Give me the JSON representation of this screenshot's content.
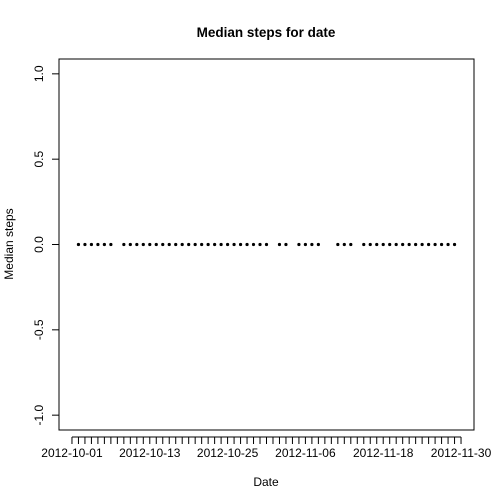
{
  "chart_data": {
    "type": "scatter",
    "title": "Median steps for date",
    "xlabel": "Date",
    "ylabel": "Median steps",
    "x_range": [
      "2012-10-01",
      "2012-11-30"
    ],
    "xlim": [
      "2012-09-29",
      "2012-12-02"
    ],
    "ylim": [
      -1.0,
      1.0
    ],
    "y_ticks": [
      {
        "value": -1.0,
        "label": "-1.0"
      },
      {
        "value": -0.5,
        "label": "-0.5"
      },
      {
        "value": 0.0,
        "label": "0.0"
      },
      {
        "value": 0.5,
        "label": "0.5"
      },
      {
        "value": 1.0,
        "label": "1.0"
      }
    ],
    "x_tick_labels": [
      {
        "date": "2012-10-01",
        "label": "2012-10-01"
      },
      {
        "date": "2012-10-13",
        "label": "2012-10-13"
      },
      {
        "date": "2012-10-25",
        "label": "2012-10-25"
      },
      {
        "date": "2012-11-06",
        "label": "2012-11-06"
      },
      {
        "date": "2012-11-18",
        "label": "2012-11-18"
      },
      {
        "date": "2012-11-30",
        "label": "2012-11-30"
      }
    ],
    "missing_dates": [
      "2012-10-08",
      "2012-11-01",
      "2012-11-04",
      "2012-11-09",
      "2012-11-10",
      "2012-11-14"
    ],
    "points": [
      {
        "x": "2012-10-02",
        "y": 0
      },
      {
        "x": "2012-10-03",
        "y": 0
      },
      {
        "x": "2012-10-04",
        "y": 0
      },
      {
        "x": "2012-10-05",
        "y": 0
      },
      {
        "x": "2012-10-06",
        "y": 0
      },
      {
        "x": "2012-10-07",
        "y": 0
      },
      {
        "x": "2012-10-09",
        "y": 0
      },
      {
        "x": "2012-10-10",
        "y": 0
      },
      {
        "x": "2012-10-11",
        "y": 0
      },
      {
        "x": "2012-10-12",
        "y": 0
      },
      {
        "x": "2012-10-13",
        "y": 0
      },
      {
        "x": "2012-10-14",
        "y": 0
      },
      {
        "x": "2012-10-15",
        "y": 0
      },
      {
        "x": "2012-10-16",
        "y": 0
      },
      {
        "x": "2012-10-17",
        "y": 0
      },
      {
        "x": "2012-10-18",
        "y": 0
      },
      {
        "x": "2012-10-19",
        "y": 0
      },
      {
        "x": "2012-10-20",
        "y": 0
      },
      {
        "x": "2012-10-21",
        "y": 0
      },
      {
        "x": "2012-10-22",
        "y": 0
      },
      {
        "x": "2012-10-23",
        "y": 0
      },
      {
        "x": "2012-10-24",
        "y": 0
      },
      {
        "x": "2012-10-25",
        "y": 0
      },
      {
        "x": "2012-10-26",
        "y": 0
      },
      {
        "x": "2012-10-27",
        "y": 0
      },
      {
        "x": "2012-10-28",
        "y": 0
      },
      {
        "x": "2012-10-29",
        "y": 0
      },
      {
        "x": "2012-10-30",
        "y": 0
      },
      {
        "x": "2012-10-31",
        "y": 0
      },
      {
        "x": "2012-11-02",
        "y": 0
      },
      {
        "x": "2012-11-03",
        "y": 0
      },
      {
        "x": "2012-11-05",
        "y": 0
      },
      {
        "x": "2012-11-06",
        "y": 0
      },
      {
        "x": "2012-11-07",
        "y": 0
      },
      {
        "x": "2012-11-08",
        "y": 0
      },
      {
        "x": "2012-11-11",
        "y": 0
      },
      {
        "x": "2012-11-12",
        "y": 0
      },
      {
        "x": "2012-11-13",
        "y": 0
      },
      {
        "x": "2012-11-15",
        "y": 0
      },
      {
        "x": "2012-11-16",
        "y": 0
      },
      {
        "x": "2012-11-17",
        "y": 0
      },
      {
        "x": "2012-11-18",
        "y": 0
      },
      {
        "x": "2012-11-19",
        "y": 0
      },
      {
        "x": "2012-11-20",
        "y": 0
      },
      {
        "x": "2012-11-21",
        "y": 0
      },
      {
        "x": "2012-11-22",
        "y": 0
      },
      {
        "x": "2012-11-23",
        "y": 0
      },
      {
        "x": "2012-11-24",
        "y": 0
      },
      {
        "x": "2012-11-25",
        "y": 0
      },
      {
        "x": "2012-11-26",
        "y": 0
      },
      {
        "x": "2012-11-27",
        "y": 0
      },
      {
        "x": "2012-11-28",
        "y": 0
      },
      {
        "x": "2012-11-29",
        "y": 0
      }
    ],
    "grid": false,
    "legend": "none",
    "marker_color": "#000000"
  }
}
